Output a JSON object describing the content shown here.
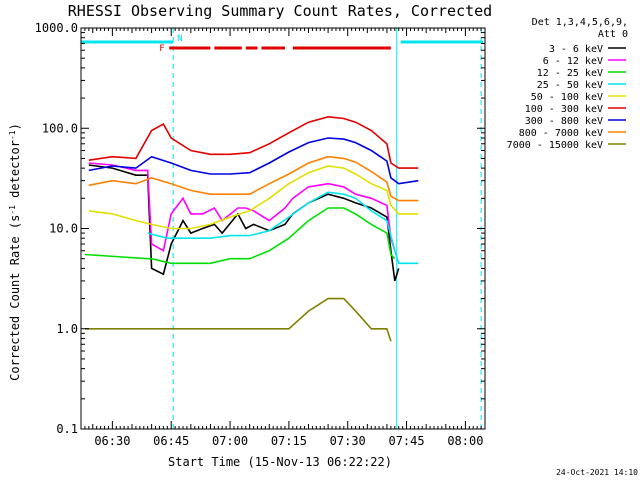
{
  "chart_data": {
    "type": "line",
    "title": "RHESSI Observing Summary Count Rates, Corrected",
    "xlabel": "Start Time (15-Nov-13 06:22:22)",
    "ylabel": "Corrected Count Rate (s",
    "ylabel_sup1": "-1",
    "ylabel_mid": " detector",
    "ylabel_sup2": "-1",
    "ylabel_end": ")",
    "xlim_min": [
      382,
      485
    ],
    "yscale": "log",
    "ylim": [
      0.1,
      1000
    ],
    "x_ticks": [
      {
        "label": "06:30",
        "min": 390
      },
      {
        "label": "06:45",
        "min": 405
      },
      {
        "label": "07:00",
        "min": 420
      },
      {
        "label": "07:15",
        "min": 435
      },
      {
        "label": "07:30",
        "min": 450
      },
      {
        "label": "07:45",
        "min": 465
      },
      {
        "label": "08:00",
        "min": 480
      }
    ],
    "y_ticks": [
      {
        "label": "0.1",
        "value": 0.1
      },
      {
        "label": "1.0",
        "value": 1
      },
      {
        "label": "10.0",
        "value": 10
      },
      {
        "label": "100.0",
        "value": 100
      },
      {
        "label": "1000.0",
        "value": 1000
      }
    ],
    "legend_header": [
      "Det 1,3,4,5,6,9,",
      "Att 0"
    ],
    "legend_placement": "right",
    "flag_labels": {
      "f": "F",
      "n": "N"
    },
    "eclipse_flag": {
      "label": "N",
      "color": "#00e5ee",
      "segments": [
        [
          382,
          405.5
        ],
        [
          463.5,
          484.5
        ]
      ]
    },
    "flare_flag": {
      "label": "F",
      "color": "#e00000",
      "segments": [
        [
          404.5,
          415
        ],
        [
          416,
          423
        ],
        [
          424,
          427
        ],
        [
          428,
          434
        ],
        [
          436,
          461
        ]
      ]
    },
    "vlines": [
      {
        "min": 382,
        "style": "solid",
        "color": "#00e5ee"
      },
      {
        "min": 405.5,
        "style": "dashed",
        "color": "#00e5ee"
      },
      {
        "min": 462.5,
        "style": "solid",
        "color": "#00e5ee"
      },
      {
        "min": 484,
        "style": "dashed",
        "color": "#00e5ee"
      }
    ],
    "series": [
      {
        "name": "3 - 6 keV",
        "color": "#000000",
        "points": [
          [
            384,
            43
          ],
          [
            390,
            40
          ],
          [
            396,
            34
          ],
          [
            399,
            34
          ],
          [
            400,
            4
          ],
          [
            403,
            3.5
          ],
          [
            405,
            7
          ],
          [
            408,
            12
          ],
          [
            410,
            9
          ],
          [
            413,
            10
          ],
          [
            416,
            11
          ],
          [
            418,
            9
          ],
          [
            422,
            14
          ],
          [
            424,
            10
          ],
          [
            426,
            11
          ],
          [
            430,
            9.5
          ],
          [
            434,
            11
          ],
          [
            436,
            14
          ],
          [
            440,
            18
          ],
          [
            445,
            22
          ],
          [
            449,
            20
          ],
          [
            452,
            18
          ],
          [
            456,
            16
          ],
          [
            460,
            13
          ],
          [
            461,
            6
          ],
          [
            462,
            3
          ],
          [
            463,
            4
          ]
        ]
      },
      {
        "name": "6 - 12 keV",
        "color": "#ff00ff",
        "points": [
          [
            384,
            45
          ],
          [
            390,
            43
          ],
          [
            396,
            38
          ],
          [
            399,
            38
          ],
          [
            400,
            7
          ],
          [
            403,
            6
          ],
          [
            405,
            14
          ],
          [
            408,
            20
          ],
          [
            410,
            14
          ],
          [
            413,
            14
          ],
          [
            416,
            16
          ],
          [
            418,
            12
          ],
          [
            422,
            16
          ],
          [
            424,
            16
          ],
          [
            426,
            15
          ],
          [
            430,
            12
          ],
          [
            434,
            16
          ],
          [
            436,
            20
          ],
          [
            440,
            26
          ],
          [
            445,
            28
          ],
          [
            449,
            26
          ],
          [
            452,
            22
          ],
          [
            456,
            20
          ],
          [
            460,
            17
          ],
          [
            461,
            8
          ],
          [
            462,
            6
          ]
        ]
      },
      {
        "name": "12 - 25 keV",
        "color": "#00e000",
        "points": [
          [
            383,
            5.5
          ],
          [
            399,
            5
          ],
          [
            400,
            5
          ],
          [
            405,
            4.5
          ],
          [
            410,
            4.5
          ],
          [
            415,
            4.5
          ],
          [
            420,
            5
          ],
          [
            425,
            5
          ],
          [
            430,
            6
          ],
          [
            435,
            8
          ],
          [
            440,
            12
          ],
          [
            445,
            16
          ],
          [
            449,
            16
          ],
          [
            452,
            14
          ],
          [
            456,
            11
          ],
          [
            460,
            9
          ],
          [
            461,
            5.5
          ],
          [
            462,
            5
          ]
        ]
      },
      {
        "name": "25 - 50 keV",
        "color": "#00e5ee",
        "points": [
          [
            399,
            9
          ],
          [
            404,
            8
          ],
          [
            410,
            8
          ],
          [
            415,
            8
          ],
          [
            420,
            8.5
          ],
          [
            425,
            8.5
          ],
          [
            430,
            9.5
          ],
          [
            435,
            13
          ],
          [
            440,
            18
          ],
          [
            445,
            23
          ],
          [
            449,
            22
          ],
          [
            452,
            20
          ],
          [
            456,
            15
          ],
          [
            460,
            12
          ],
          [
            462,
            6
          ],
          [
            463,
            4.5
          ],
          [
            468,
            4.5
          ]
        ]
      },
      {
        "name": "50 - 100 keV",
        "color": "#e0e000",
        "points": [
          [
            384,
            15
          ],
          [
            390,
            14
          ],
          [
            396,
            12
          ],
          [
            400,
            11
          ],
          [
            405,
            10
          ],
          [
            410,
            10
          ],
          [
            415,
            11
          ],
          [
            420,
            13
          ],
          [
            425,
            15
          ],
          [
            430,
            20
          ],
          [
            435,
            28
          ],
          [
            440,
            36
          ],
          [
            445,
            42
          ],
          [
            449,
            40
          ],
          [
            452,
            35
          ],
          [
            456,
            28
          ],
          [
            460,
            24
          ],
          [
            461,
            17
          ],
          [
            463,
            14
          ],
          [
            468,
            14
          ]
        ]
      },
      {
        "name": "100 - 300 keV",
        "color": "#e00000",
        "points": [
          [
            384,
            48
          ],
          [
            390,
            52
          ],
          [
            396,
            50
          ],
          [
            400,
            95
          ],
          [
            403,
            110
          ],
          [
            405,
            80
          ],
          [
            410,
            60
          ],
          [
            415,
            55
          ],
          [
            420,
            55
          ],
          [
            425,
            57
          ],
          [
            430,
            70
          ],
          [
            435,
            90
          ],
          [
            440,
            115
          ],
          [
            445,
            130
          ],
          [
            449,
            125
          ],
          [
            452,
            115
          ],
          [
            456,
            95
          ],
          [
            460,
            70
          ],
          [
            461,
            45
          ],
          [
            463,
            40
          ],
          [
            468,
            40
          ]
        ]
      },
      {
        "name": "300 - 800 keV",
        "color": "#0000e0",
        "points": [
          [
            384,
            38
          ],
          [
            390,
            42
          ],
          [
            396,
            40
          ],
          [
            400,
            52
          ],
          [
            405,
            45
          ],
          [
            410,
            38
          ],
          [
            415,
            35
          ],
          [
            420,
            35
          ],
          [
            425,
            36
          ],
          [
            430,
            45
          ],
          [
            435,
            58
          ],
          [
            440,
            72
          ],
          [
            445,
            80
          ],
          [
            449,
            78
          ],
          [
            452,
            72
          ],
          [
            456,
            60
          ],
          [
            460,
            47
          ],
          [
            461,
            32
          ],
          [
            463,
            28
          ],
          [
            468,
            30
          ]
        ]
      },
      {
        "name": "800 - 7000 keV",
        "color": "#ff8000",
        "points": [
          [
            384,
            27
          ],
          [
            390,
            30
          ],
          [
            396,
            28
          ],
          [
            400,
            32
          ],
          [
            405,
            28
          ],
          [
            410,
            24
          ],
          [
            415,
            22
          ],
          [
            420,
            22
          ],
          [
            425,
            22
          ],
          [
            430,
            28
          ],
          [
            435,
            35
          ],
          [
            440,
            45
          ],
          [
            445,
            52
          ],
          [
            449,
            50
          ],
          [
            452,
            46
          ],
          [
            456,
            37
          ],
          [
            460,
            29
          ],
          [
            461,
            21
          ],
          [
            463,
            19
          ],
          [
            468,
            19
          ]
        ]
      },
      {
        "name": "7000 - 15000 keV",
        "color": "#808000",
        "points": [
          [
            383,
            1
          ],
          [
            390,
            1
          ],
          [
            400,
            1
          ],
          [
            405,
            1
          ],
          [
            410,
            1
          ],
          [
            415,
            1
          ],
          [
            420,
            1
          ],
          [
            425,
            1
          ],
          [
            430,
            1
          ],
          [
            435,
            1
          ],
          [
            440,
            1.5
          ],
          [
            445,
            2
          ],
          [
            449,
            2
          ],
          [
            452,
            1.5
          ],
          [
            456,
            1
          ],
          [
            460,
            1
          ],
          [
            461,
            0.75
          ]
        ]
      }
    ]
  },
  "footer": {
    "date_stamp": "24-Oct-2021 14:10"
  }
}
